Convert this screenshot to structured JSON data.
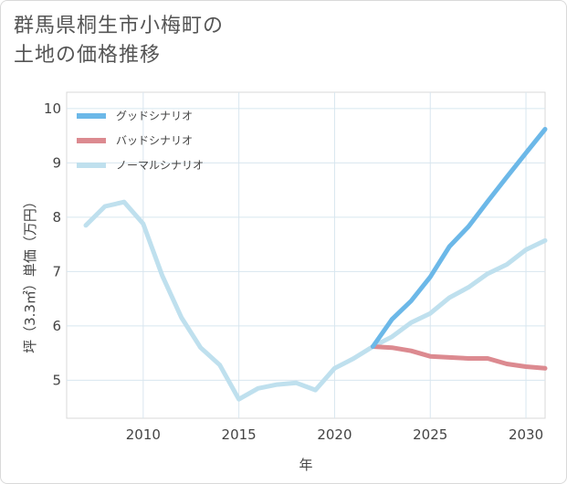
{
  "title_lines": [
    "群馬県桐生市小梅町の",
    "土地の価格推移"
  ],
  "chart_data": {
    "type": "line",
    "xlabel": "年",
    "ylabel": "坪（3.3㎡）単価（万円）",
    "xlim": [
      2006,
      2031
    ],
    "ylim": [
      4.3,
      10.3
    ],
    "xticks": [
      2010,
      2015,
      2020,
      2025,
      2030
    ],
    "yticks": [
      5,
      6,
      7,
      8,
      9,
      10
    ],
    "grid": true,
    "legend_position": "top-left",
    "series": [
      {
        "name": "グッドシナリオ",
        "color": "#6cb8e8",
        "x": [
          2022,
          2023,
          2024,
          2025,
          2026,
          2027,
          2028,
          2029,
          2030,
          2031
        ],
        "y": [
          5.62,
          6.12,
          6.46,
          6.9,
          7.46,
          7.83,
          8.29,
          8.74,
          9.18,
          9.62
        ]
      },
      {
        "name": "バッドシナリオ",
        "color": "#dc8a90",
        "x": [
          2022,
          2023,
          2024,
          2025,
          2026,
          2027,
          2028,
          2029,
          2030,
          2031
        ],
        "y": [
          5.62,
          5.6,
          5.54,
          5.44,
          5.42,
          5.4,
          5.4,
          5.3,
          5.25,
          5.22
        ]
      },
      {
        "name": "ノーマルシナリオ",
        "color": "#bfe0ee",
        "x": [
          2007,
          2008,
          2009,
          2010,
          2011,
          2012,
          2013,
          2014,
          2015,
          2016,
          2017,
          2018,
          2019,
          2020,
          2021,
          2022,
          2023,
          2024,
          2025,
          2026,
          2027,
          2028,
          2029,
          2030,
          2031
        ],
        "y": [
          7.85,
          8.2,
          8.28,
          7.88,
          6.92,
          6.15,
          5.6,
          5.28,
          4.65,
          4.85,
          4.92,
          4.95,
          4.82,
          5.22,
          5.4,
          5.62,
          5.8,
          6.06,
          6.23,
          6.52,
          6.71,
          6.96,
          7.13,
          7.4,
          7.57
        ]
      }
    ]
  }
}
